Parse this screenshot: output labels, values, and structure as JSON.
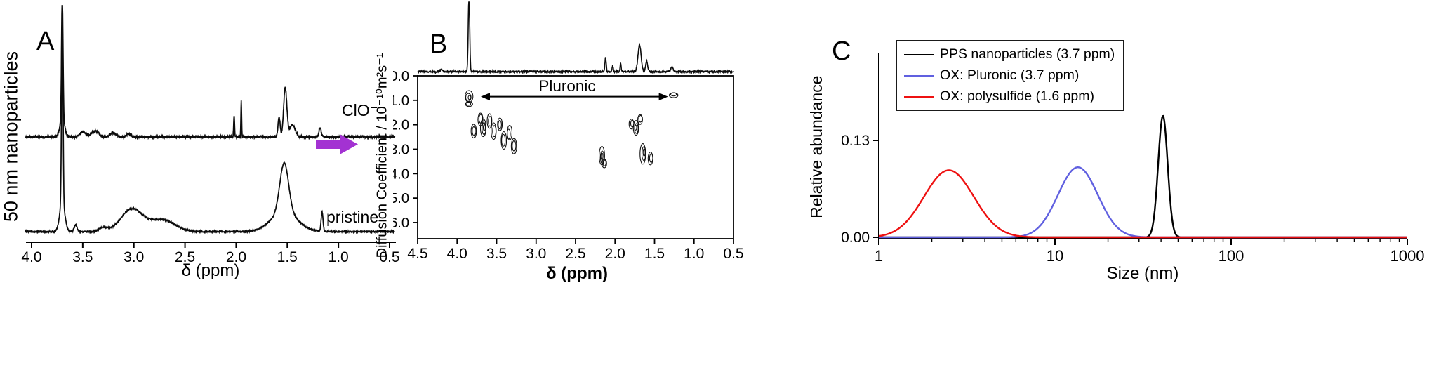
{
  "panels": {
    "a": {
      "label": "A",
      "y_axis_label": "50 nm nanoparticles",
      "x_axis_label": "δ (ppm)",
      "trace_top_label": "ClO⁻",
      "trace_bottom_label": "pristine"
    },
    "b": {
      "label": "B",
      "y_axis_label": "Diffusion Coefficient / 10⁻¹⁰m²s⁻¹",
      "x_axis_label": "δ (ppm)",
      "annotation": "Pluronic"
    },
    "c": {
      "label": "C",
      "y_axis_label": "Relative abundance",
      "x_axis_label": "Size (nm)"
    }
  },
  "arrow": {
    "color": "#a332d2"
  },
  "chart_data": [
    {
      "id": "A",
      "type": "line",
      "xlabel": "δ (ppm)",
      "ylabel": "50 nm nanoparticles",
      "x_range": [
        4.0,
        0.5
      ],
      "x_reversed": true,
      "grid": false,
      "x_ticks": [
        "4.0",
        "3.5",
        "3.0",
        "2.5",
        "2.0",
        "1.5",
        "1.0",
        "0.5"
      ],
      "series": [
        {
          "name": "ClO⁻",
          "noise": 0.006,
          "peaks": [
            [
              3.7,
              0.62,
              0.01
            ],
            [
              3.7,
              0.1,
              0.03
            ],
            [
              3.5,
              0.025,
              0.04
            ],
            [
              3.38,
              0.03,
              0.05
            ],
            [
              3.2,
              0.02,
              0.04
            ],
            [
              3.05,
              0.015,
              0.03
            ],
            [
              2.02,
              0.11,
              0.006
            ],
            [
              1.95,
              0.18,
              0.005
            ],
            [
              1.58,
              0.1,
              0.015
            ],
            [
              1.52,
              0.25,
              0.022
            ],
            [
              1.45,
              0.06,
              0.04
            ],
            [
              1.18,
              0.045,
              0.015
            ]
          ]
        },
        {
          "name": "pristine",
          "noise": 0.003,
          "peaks": [
            [
              3.7,
              0.96,
              0.01
            ],
            [
              3.7,
              0.15,
              0.035
            ],
            [
              3.57,
              0.035,
              0.02
            ],
            [
              3.3,
              0.02,
              0.06
            ],
            [
              3.02,
              0.115,
              0.15
            ],
            [
              2.72,
              0.06,
              0.17
            ],
            [
              1.53,
              0.25,
              0.06
            ],
            [
              1.53,
              0.1,
              0.18
            ],
            [
              1.16,
              0.1,
              0.013
            ]
          ]
        }
      ]
    },
    {
      "id": "B",
      "type": "scatter",
      "xlabel": "δ (ppm)",
      "ylabel": "Diffusion Coefficient / 10⁻¹⁰m²s⁻¹",
      "x_range": [
        4.5,
        0.5
      ],
      "y_range": [
        0.0,
        6.5
      ],
      "y_inverted_down": true,
      "x_ticks": [
        "4.5",
        "4.0",
        "3.5",
        "3.0",
        "2.5",
        "2.0",
        "1.5",
        "1.0",
        "0.5"
      ],
      "y_ticks": [
        "0.0",
        "1.0",
        "2.0",
        "3.0",
        "4.0",
        "5.0",
        "6.0"
      ],
      "annotation_text": "Pluronic",
      "annotation_span_ppm": [
        3.7,
        1.33
      ],
      "annotation_diffusion": 0.85,
      "top_spectrum_peaks": [
        [
          3.85,
          110,
          0.013
        ],
        [
          2.12,
          20,
          0.011
        ],
        [
          2.03,
          9,
          0.009
        ],
        [
          1.93,
          12,
          0.009
        ],
        [
          1.69,
          38,
          0.028
        ],
        [
          1.6,
          15,
          0.018
        ],
        [
          1.28,
          7,
          0.02
        ],
        [
          4.2,
          3,
          0.02
        ]
      ],
      "clusters": [
        {
          "p": 3.85,
          "d": 0.85,
          "rx": 0.05,
          "ry": 0.24,
          "rings": 3
        },
        {
          "p": 3.85,
          "d": 1.18,
          "rx": 0.045,
          "ry": 0.1,
          "rings": 2
        },
        {
          "p": 1.26,
          "d": 0.78,
          "rx": 0.055,
          "ry": 0.1,
          "rings": 2
        },
        {
          "p": 3.79,
          "d": 2.25,
          "rx": 0.035,
          "ry": 0.28,
          "rings": 2
        },
        {
          "p": 3.71,
          "d": 1.78,
          "rx": 0.032,
          "ry": 0.26,
          "rings": 2
        },
        {
          "p": 3.66,
          "d": 2.12,
          "rx": 0.036,
          "ry": 0.36,
          "rings": 3
        },
        {
          "p": 3.59,
          "d": 1.85,
          "rx": 0.03,
          "ry": 0.3,
          "rings": 2
        },
        {
          "p": 3.53,
          "d": 2.25,
          "rx": 0.032,
          "ry": 0.34,
          "rings": 2
        },
        {
          "p": 3.46,
          "d": 2.0,
          "rx": 0.03,
          "ry": 0.26,
          "rings": 2
        },
        {
          "p": 3.41,
          "d": 2.6,
          "rx": 0.034,
          "ry": 0.36,
          "rings": 2
        },
        {
          "p": 3.34,
          "d": 2.35,
          "rx": 0.03,
          "ry": 0.3,
          "rings": 2
        },
        {
          "p": 3.28,
          "d": 2.9,
          "rx": 0.035,
          "ry": 0.32,
          "rings": 2
        },
        {
          "p": 2.17,
          "d": 3.3,
          "rx": 0.035,
          "ry": 0.38,
          "rings": 3
        },
        {
          "p": 2.13,
          "d": 3.6,
          "rx": 0.03,
          "ry": 0.18,
          "rings": 2
        },
        {
          "p": 1.79,
          "d": 1.95,
          "rx": 0.03,
          "ry": 0.2,
          "rings": 2
        },
        {
          "p": 1.73,
          "d": 2.12,
          "rx": 0.035,
          "ry": 0.3,
          "rings": 3
        },
        {
          "p": 1.68,
          "d": 1.78,
          "rx": 0.03,
          "ry": 0.2,
          "rings": 2
        },
        {
          "p": 1.64,
          "d": 3.15,
          "rx": 0.036,
          "ry": 0.42,
          "rings": 3
        },
        {
          "p": 1.55,
          "d": 3.4,
          "rx": 0.03,
          "ry": 0.26,
          "rings": 2
        }
      ]
    },
    {
      "id": "C",
      "type": "line",
      "xlabel": "Size (nm)",
      "ylabel": "Relative abundance",
      "x_scale": "log",
      "xlim": [
        1,
        1000
      ],
      "ylim": [
        0,
        0.175
      ],
      "x_ticks": [
        "1",
        "10",
        "100",
        "1000"
      ],
      "y_ticks": [
        {
          "label": "0.13",
          "v": 0.13
        },
        {
          "label": "0.00",
          "v": 0.0
        }
      ],
      "legend_position": "top-right",
      "series": [
        {
          "name": "PPS nanoparticles (3.7 ppm)",
          "color": "#000000",
          "center_nm": 41,
          "sigma_log10": 0.038,
          "height": 0.163
        },
        {
          "name": "OX: Pluronic (3.7 ppm)",
          "color": "#6060e0",
          "center_nm": 13.5,
          "sigma_log10": 0.16,
          "height": 0.094
        },
        {
          "name": "OX: polysulfide (1.6 ppm)",
          "color": "#ee1111",
          "center_nm": 2.5,
          "sigma_log10": 0.2,
          "height": 0.09
        }
      ]
    }
  ]
}
